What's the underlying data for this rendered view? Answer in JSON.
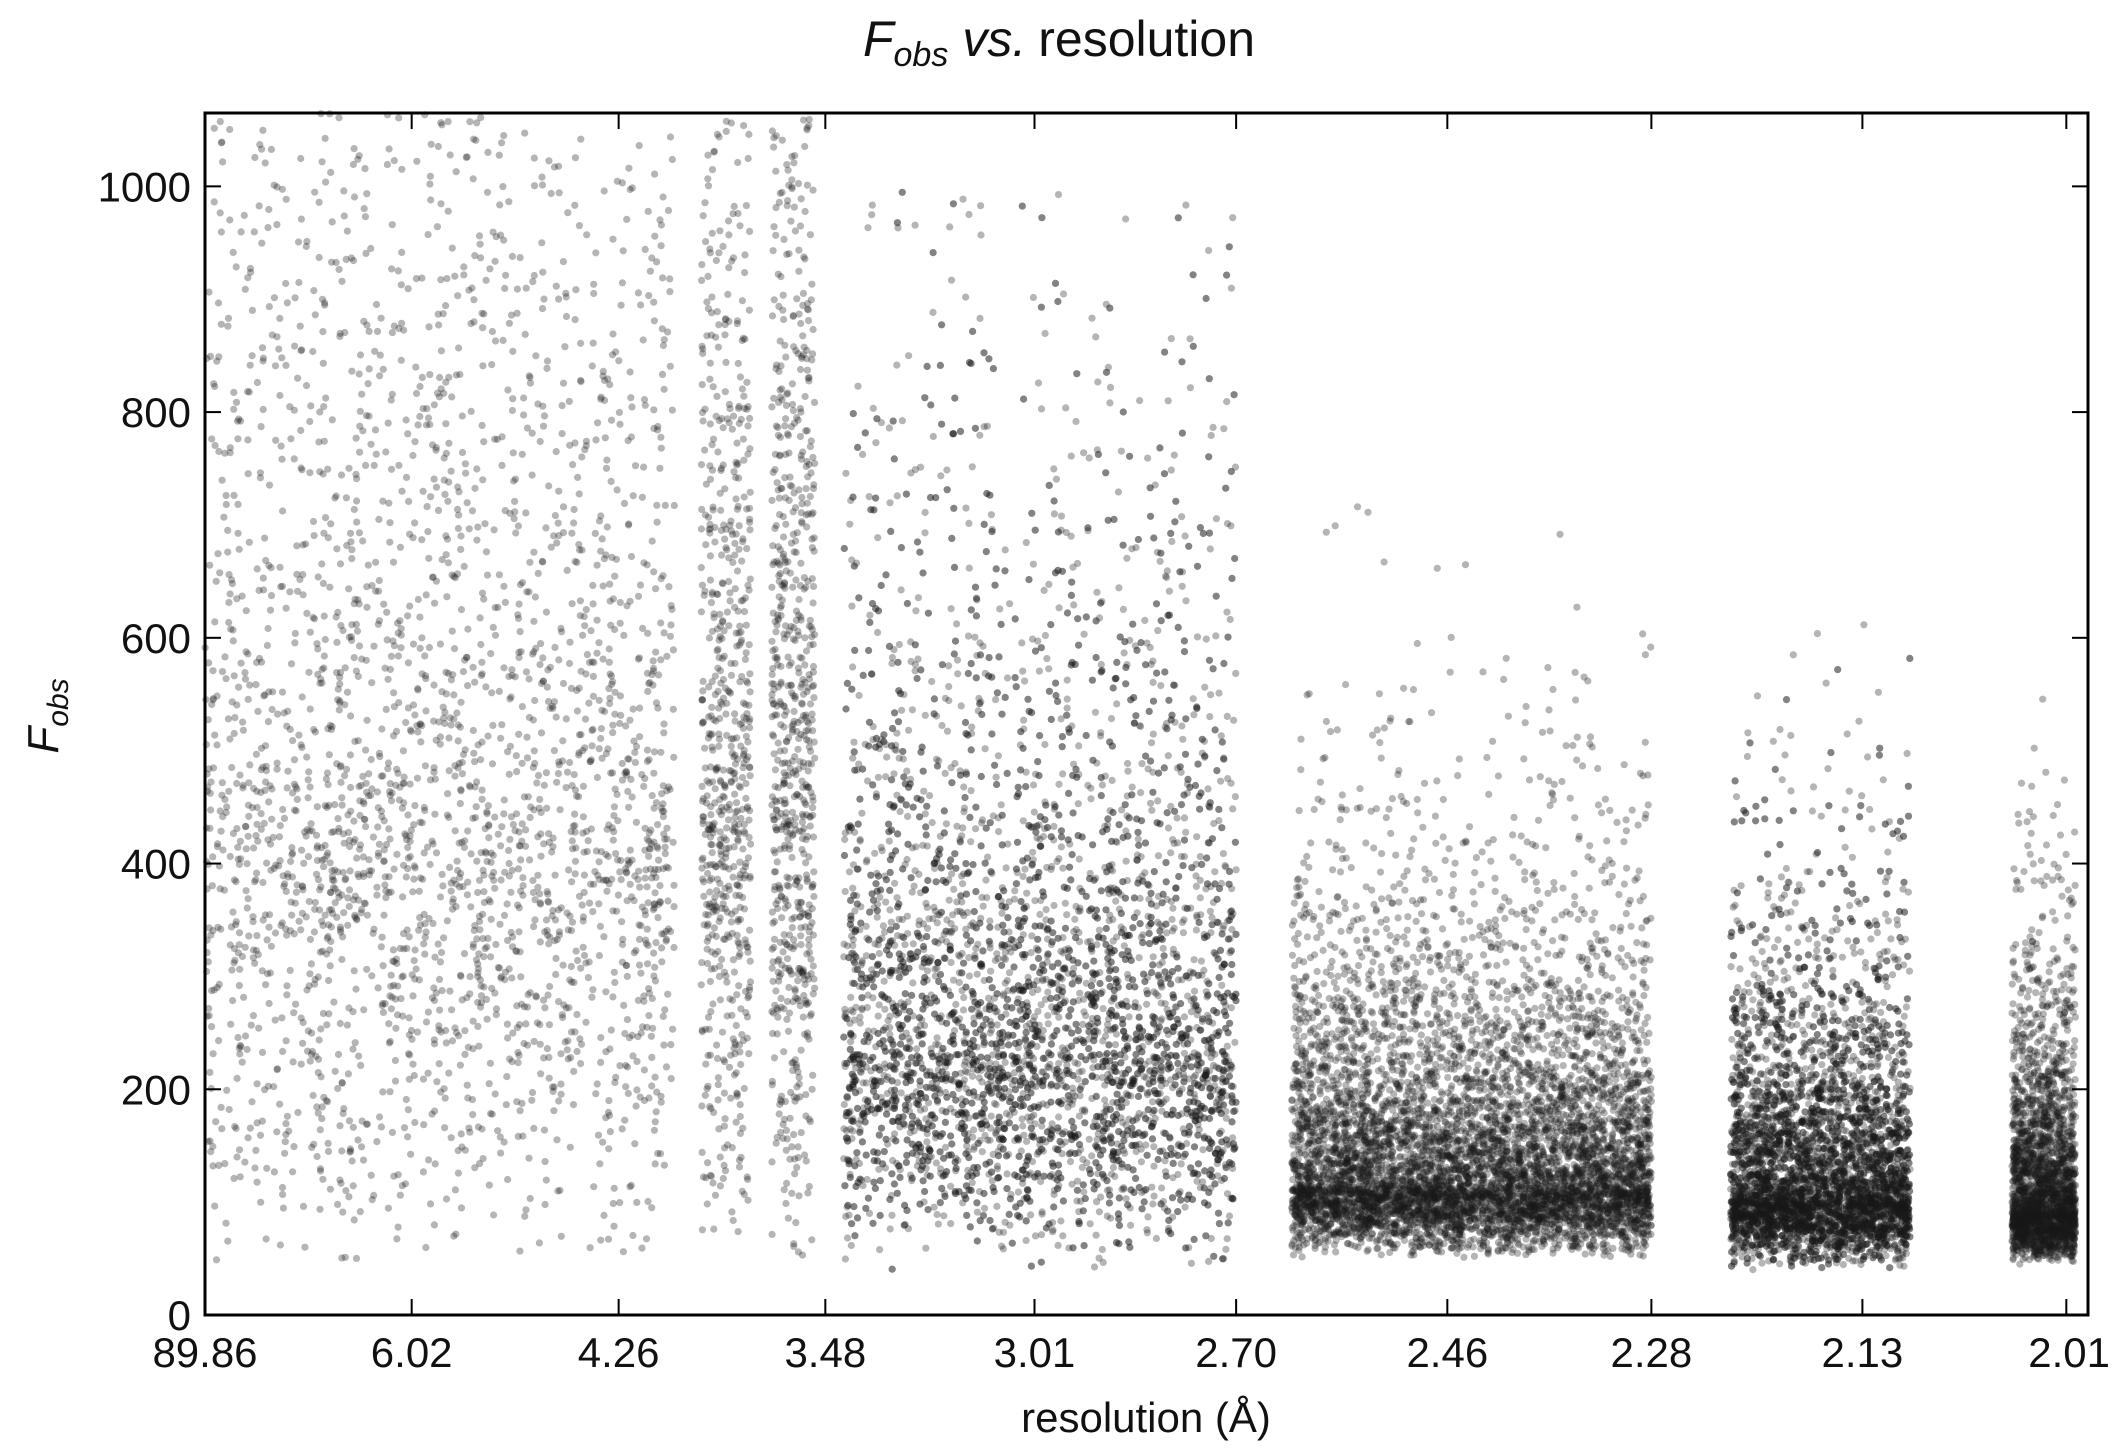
{
  "chart_data": {
    "type": "scatter",
    "title_symbol": "F",
    "title_subscript": "obs",
    "title_vs": "vs.",
    "title_rest": "resolution",
    "xlabel": "resolution (Å)",
    "ylabel_symbol": "F",
    "ylabel_subscript": "obs",
    "x_scale": "1/d^2",
    "x_axis_range_inv_d2": [
      0.000124,
      0.2504
    ],
    "xticks": [
      {
        "value": 89.86,
        "label": "89.86"
      },
      {
        "value": 6.02,
        "label": "6.02"
      },
      {
        "value": 4.26,
        "label": "4.26"
      },
      {
        "value": 3.48,
        "label": "3.48"
      },
      {
        "value": 3.01,
        "label": "3.01"
      },
      {
        "value": 2.7,
        "label": "2.70"
      },
      {
        "value": 2.46,
        "label": "2.46"
      },
      {
        "value": 2.28,
        "label": "2.28"
      },
      {
        "value": 2.13,
        "label": "2.13"
      },
      {
        "value": 2.01,
        "label": "2.01"
      }
    ],
    "ylim": [
      0,
      1065
    ],
    "yticks": [
      0,
      200,
      400,
      600,
      800,
      1000
    ],
    "grid": false,
    "marker_color": "#1a1a1a",
    "marker_opacity": 0.32,
    "point_groups": [
      {
        "res_range": [
          89.86,
          4.0
        ],
        "f_range": [
          40,
          1065
        ],
        "f_mode": 400,
        "count": 2600
      },
      {
        "res_range": [
          3.89,
          3.71
        ],
        "f_range": [
          60,
          1065
        ],
        "f_mode": 450,
        "count": 650
      },
      {
        "res_range": [
          3.64,
          3.51
        ],
        "f_range": [
          50,
          1065
        ],
        "f_mode": 450,
        "count": 700
      },
      {
        "res_range": [
          3.43,
          2.7
        ],
        "f_range": [
          40,
          1000
        ],
        "f_mode": 220,
        "count": 5200
      },
      {
        "res_range": [
          2.63,
          2.28
        ],
        "f_range": [
          50,
          800
        ],
        "f_mode": 110,
        "count": 7000
      },
      {
        "res_range": [
          2.22,
          2.1
        ],
        "f_range": [
          40,
          620
        ],
        "f_mode": 100,
        "count": 5200
      },
      {
        "res_range": [
          2.04,
          2.005
        ],
        "f_range": [
          45,
          560
        ],
        "f_mode": 90,
        "count": 2400
      }
    ]
  }
}
